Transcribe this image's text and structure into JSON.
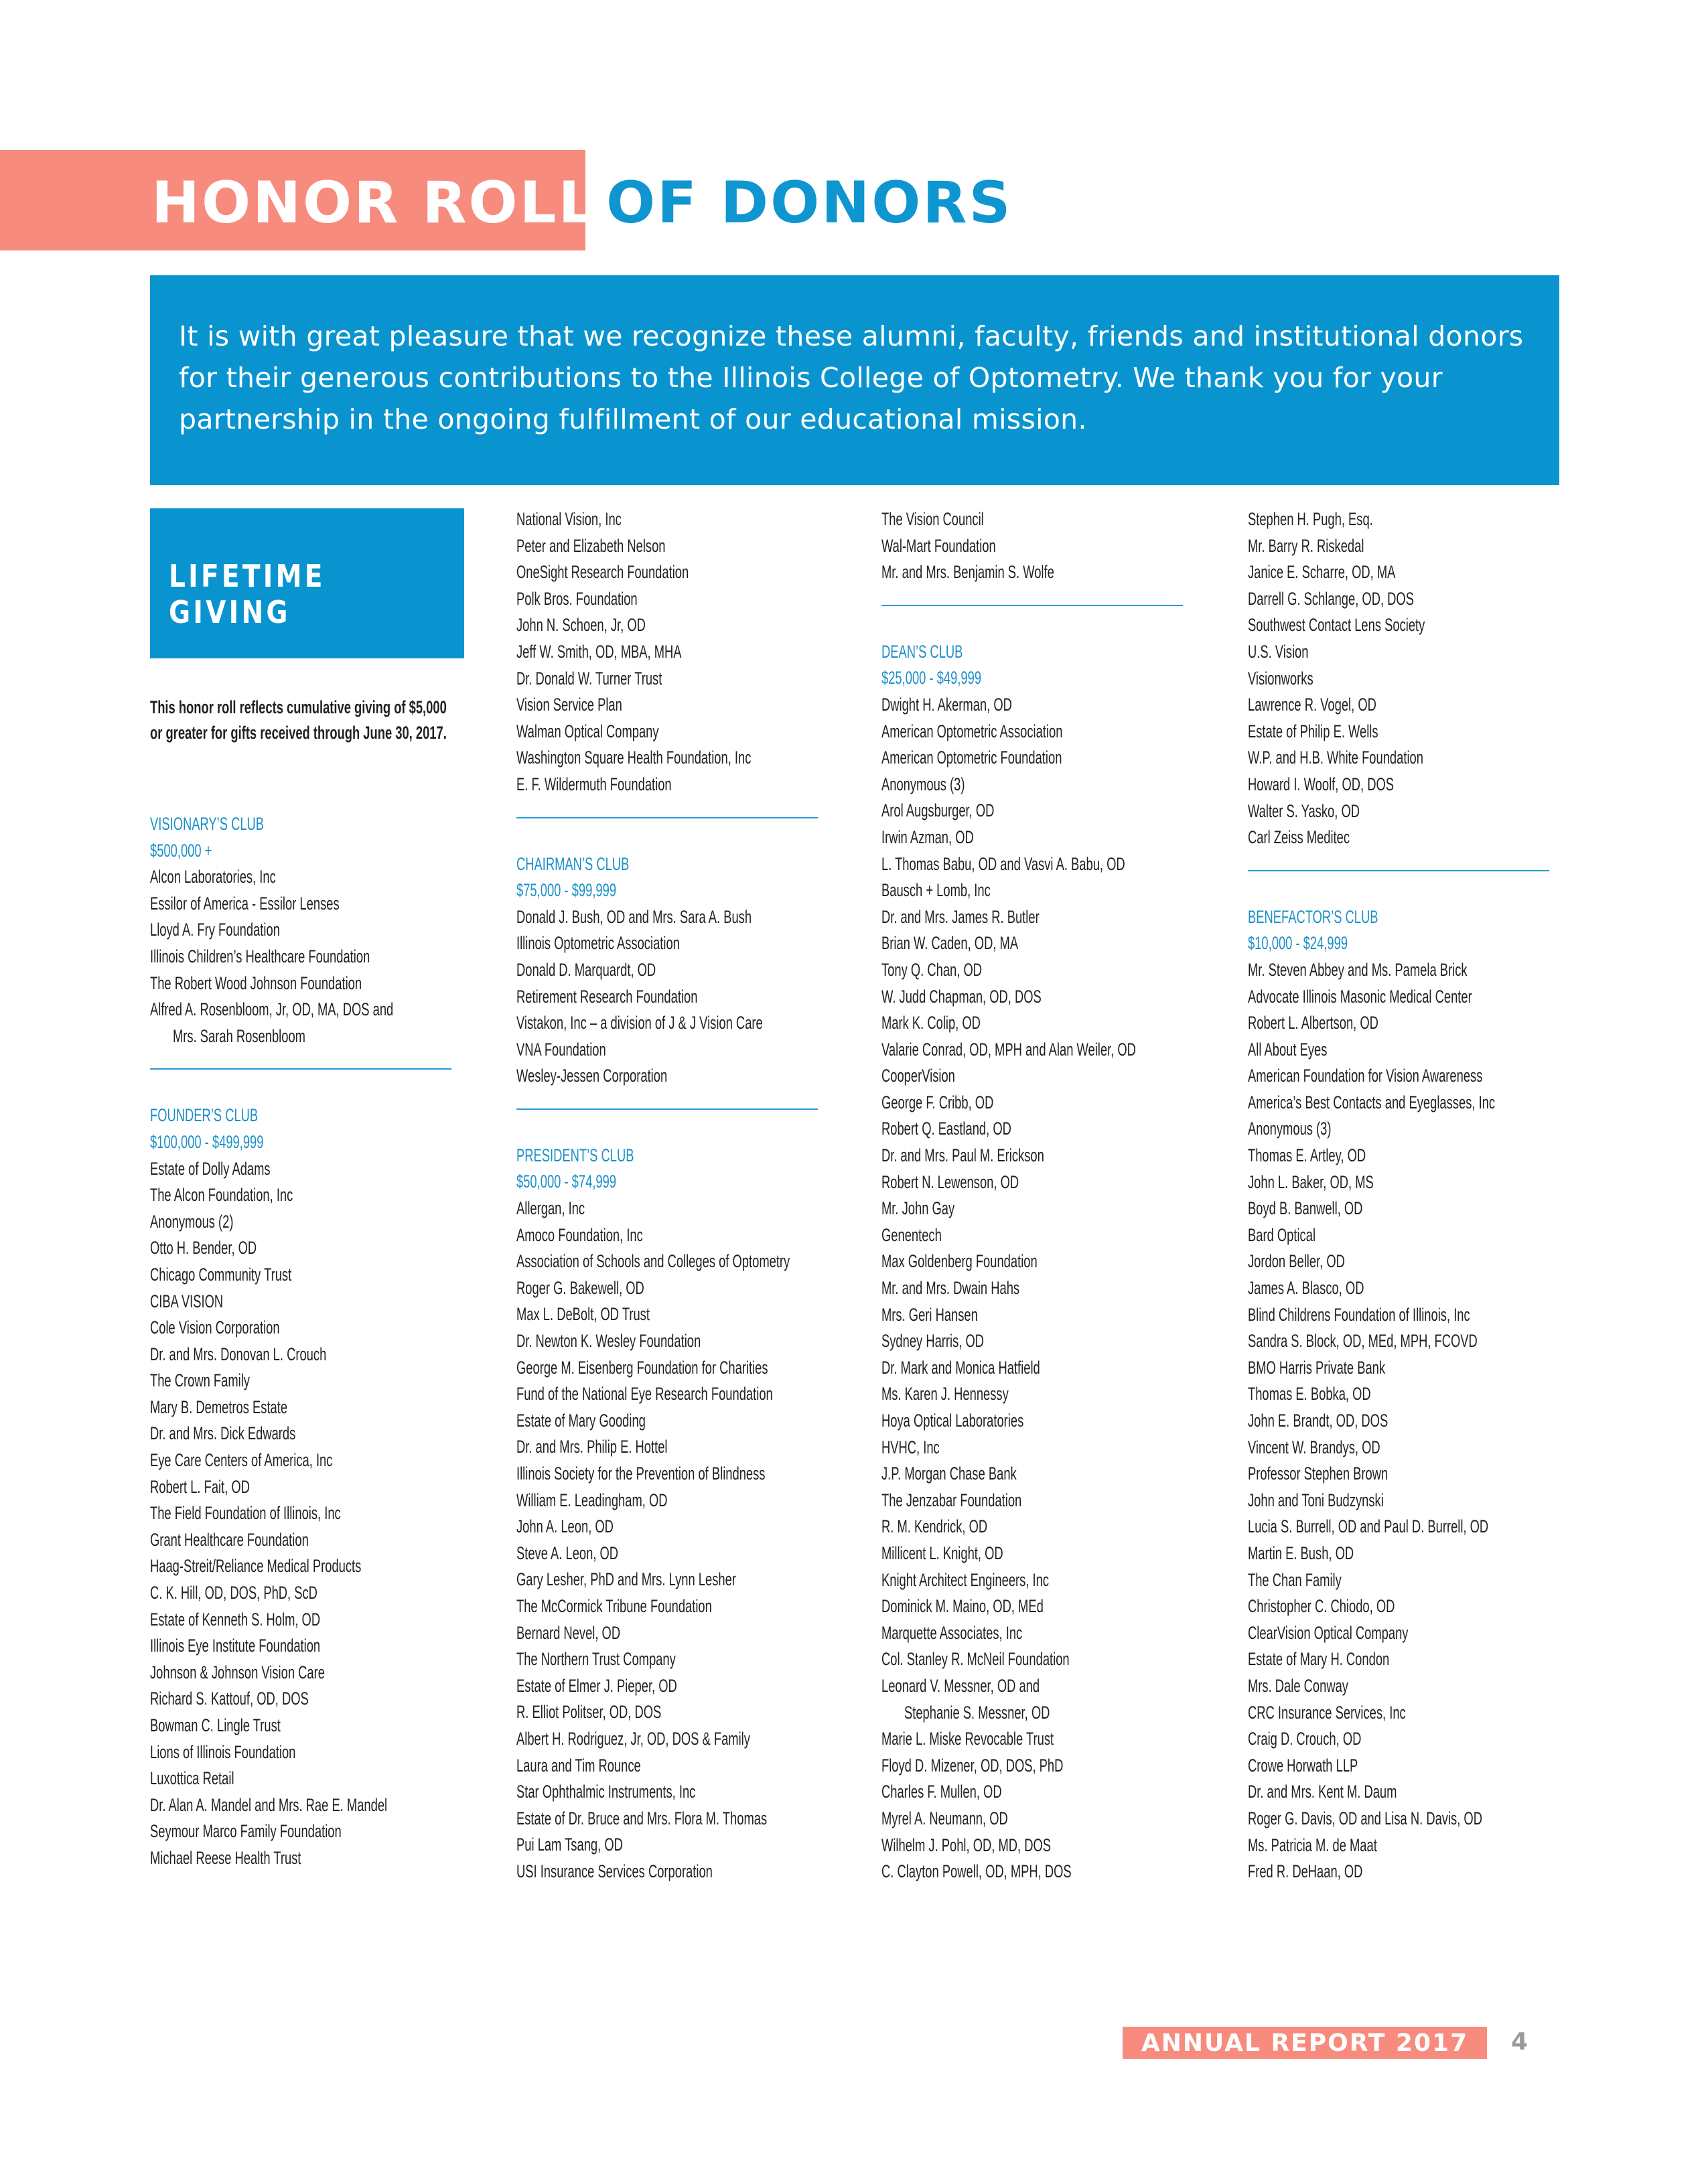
{
  "header": {
    "title_highlight": "HONOR ROLL",
    "title_rest": "OF DONORS"
  },
  "intro": {
    "text": "It is with great pleasure that we recognize these alumni, faculty, friends and institutional donors for their generous contributions to the Illinois College of Optometry. We thank you for your partnership in the ongoing fulfillment of our educational mission."
  },
  "lifetime": {
    "title_line1": "LIFETIME",
    "title_line2": "GIVING",
    "note": "This honor roll reflects cumulative giving of $5,000 or greater for gifts received through June 30, 2017."
  },
  "colors": {
    "coral": "#f78b7e",
    "blue": "#0994cf",
    "heading_blue": "#1a8fc7"
  },
  "columns": [
    {
      "sections": [
        {
          "heading": "VISIONARY’S CLUB",
          "range": "$500,000 +",
          "items": [
            "Alcon Laboratories, Inc",
            "Essilor of America - Essilor Lenses",
            "Lloyd A. Fry Foundation",
            "Illinois Children’s Healthcare Foundation",
            "The Robert Wood Johnson Foundation",
            "Alfred A. Rosenbloom, Jr, OD, MA, DOS and",
            {
              "text": "Mrs. Sarah Rosenbloom",
              "indent": true
            }
          ],
          "divider": true
        },
        {
          "heading": "FOUNDER’S CLUB",
          "range": "$100,000 - $499,999",
          "items": [
            "Estate of Dolly Adams",
            "The Alcon Foundation, Inc",
            "Anonymous (2)",
            "Otto H. Bender, OD",
            "Chicago Community Trust",
            "CIBA VISION",
            "Cole Vision Corporation",
            "Dr. and Mrs. Donovan L. Crouch",
            "The Crown Family",
            "Mary B. Demetros Estate",
            "Dr. and Mrs. Dick Edwards",
            "Eye Care Centers of America, Inc",
            "Robert L. Fait, OD",
            "The Field Foundation of Illinois, Inc",
            "Grant Healthcare Foundation",
            "Haag-Streit/Reliance Medical Products",
            "C. K. Hill, OD, DOS, PhD, ScD",
            "Estate of Kenneth S. Holm, OD",
            "Illinois Eye Institute Foundation",
            "Johnson & Johnson Vision Care",
            "Richard S. Kattouf, OD, DOS",
            "Bowman C. Lingle Trust",
            "Lions of Illinois Foundation",
            "Luxottica Retail",
            "Dr. Alan A. Mandel and Mrs. Rae E. Mandel",
            "Seymour Marco Family Foundation",
            "Michael Reese Health Trust"
          ]
        }
      ]
    },
    {
      "sections": [
        {
          "items": [
            "National Vision, Inc",
            "Peter and Elizabeth Nelson",
            "OneSight Research Foundation",
            "Polk Bros. Foundation",
            "John N. Schoen, Jr, OD",
            "Jeff W. Smith, OD, MBA, MHA",
            "Dr. Donald W. Turner Trust",
            "Vision Service Plan",
            "Walman Optical Company",
            "Washington Square Health Foundation, Inc",
            "E. F. Wildermuth Foundation"
          ],
          "divider": true
        },
        {
          "heading": "CHAIRMAN’S CLUB",
          "range": "$75,000 - $99,999",
          "items": [
            "Donald J. Bush, OD and Mrs. Sara A. Bush",
            "Illinois Optometric Association",
            "Donald D. Marquardt, OD",
            "Retirement Research Foundation",
            "Vistakon, Inc – a division of J & J Vision Care",
            "VNA Foundation",
            "Wesley-Jessen Corporation"
          ],
          "divider": true
        },
        {
          "heading": "PRESIDENT’S CLUB",
          "range": "$50,000 - $74,999",
          "items": [
            "Allergan, Inc",
            "Amoco Foundation, Inc",
            "Association of Schools and Colleges of Optometry",
            "Roger G. Bakewell, OD",
            "Max L. DeBolt, OD Trust",
            "Dr. Newton K. Wesley Foundation",
            "George M. Eisenberg Foundation for Charities",
            "Fund of the National Eye Research Foundation",
            "Estate of Mary Gooding",
            "Dr. and Mrs. Philip E. Hottel",
            "Illinois Society for the Prevention of Blindness",
            "William E. Leadingham, OD",
            "John A. Leon, OD",
            "Steve A. Leon, OD",
            "Gary Lesher, PhD and Mrs. Lynn Lesher",
            "The McCormick Tribune Foundation",
            "Bernard Nevel, OD",
            "The Northern Trust Company",
            "Estate of Elmer J. Pieper, OD",
            "R. Elliot Politser, OD, DOS",
            "Albert H. Rodriguez, Jr, OD, DOS & Family",
            "Laura and Tim Rounce",
            "Star Ophthalmic Instruments, Inc",
            "Estate of Dr. Bruce and Mrs. Flora M. Thomas",
            "Pui Lam Tsang, OD",
            "USI Insurance Services Corporation"
          ]
        }
      ]
    },
    {
      "sections": [
        {
          "items": [
            "The Vision Council",
            "Wal-Mart Foundation",
            "Mr. and Mrs. Benjamin S. Wolfe"
          ],
          "divider": true
        },
        {
          "heading": "DEAN’S CLUB",
          "range": "$25,000 - $49,999",
          "items": [
            "Dwight H. Akerman, OD",
            "American Optometric Association",
            "American Optometric Foundation",
            "Anonymous (3)",
            "Arol Augsburger, OD",
            "Irwin Azman, OD",
            "L. Thomas Babu, OD and Vasvi A. Babu, OD",
            "Bausch + Lomb, Inc",
            "Dr. and Mrs. James R. Butler",
            "Brian W. Caden, OD, MA",
            "Tony Q. Chan, OD",
            "W. Judd Chapman, OD, DOS",
            "Mark K. Colip, OD",
            "Valarie Conrad, OD, MPH and Alan Weiler, OD",
            "CooperVision",
            "George F. Cribb, OD",
            "Robert Q. Eastland, OD",
            "Dr. and Mrs. Paul M. Erickson",
            "Robert N. Lewenson, OD",
            "Mr. John Gay",
            "Genentech",
            "Max Goldenberg Foundation",
            "Mr. and Mrs. Dwain Hahs",
            "Mrs. Geri Hansen",
            "Sydney Harris, OD",
            "Dr. Mark and Monica Hatfield",
            "Ms. Karen J. Hennessy",
            "Hoya Optical Laboratories",
            "HVHC, Inc",
            "J.P. Morgan Chase Bank",
            "The Jenzabar Foundation",
            "R. M. Kendrick, OD",
            "Millicent L. Knight, OD",
            "Knight Architect Engineers, Inc",
            "Dominick M. Maino, OD, MEd",
            "Marquette Associates, Inc",
            "Col. Stanley R. McNeil Foundation",
            "Leonard V. Messner, OD and",
            {
              "text": "Stephanie S. Messner, OD",
              "indent": true
            },
            "Marie L. Miske Revocable Trust",
            "Floyd D. Mizener, OD, DOS, PhD",
            "Charles F. Mullen, OD",
            "Myrel A. Neumann, OD",
            "Wilhelm J. Pohl, OD, MD, DOS",
            "C. Clayton Powell, OD, MPH, DOS"
          ]
        }
      ]
    },
    {
      "sections": [
        {
          "items": [
            "Stephen H. Pugh, Esq.",
            "Mr. Barry R. Riskedal",
            "Janice E. Scharre, OD, MA",
            "Darrell G. Schlange, OD, DOS",
            "Southwest Contact Lens Society",
            "U.S. Vision",
            "Visionworks",
            "Lawrence R. Vogel, OD",
            "Estate of Philip E. Wells",
            "W.P. and H.B. White Foundation",
            "Howard I. Woolf, OD, DOS",
            "Walter S. Yasko, OD",
            "Carl Zeiss Meditec"
          ],
          "divider": true
        },
        {
          "heading": "BENEFACTOR’S CLUB",
          "range": "$10,000 - $24,999",
          "items": [
            "Mr. Steven Abbey and Ms. Pamela Brick",
            "Advocate Illinois Masonic Medical Center",
            "Robert L. Albertson, OD",
            "All About Eyes",
            "American Foundation for Vision Awareness",
            "America’s Best Contacts and Eyeglasses, Inc",
            "Anonymous (3)",
            "Thomas E. Artley, OD",
            "John L. Baker, OD, MS",
            "Boyd B. Banwell, OD",
            "Bard Optical",
            "Jordon Beller, OD",
            "James A. Blasco, OD",
            "Blind Childrens Foundation of Illinois, Inc",
            "Sandra S. Block, OD, MEd, MPH, FCOVD",
            "BMO Harris Private Bank",
            "Thomas E. Bobka, OD",
            "John E. Brandt, OD, DOS",
            "Vincent W. Brandys, OD",
            "Professor Stephen Brown",
            "John and Toni Budzynski",
            "Lucia S. Burrell, OD and Paul D. Burrell, OD",
            "Martin E. Bush, OD",
            "The Chan Family",
            "Christopher C. Chiodo, OD",
            "ClearVision Optical Company",
            "Estate of Mary H. Condon",
            "Mrs. Dale Conway",
            "CRC Insurance Services, Inc",
            "Craig D. Crouch, OD",
            "Crowe Horwath LLP",
            "Dr. and Mrs. Kent M. Daum",
            "Roger G. Davis, OD and Lisa N. Davis, OD",
            "Ms. Patricia M. de Maat",
            "Fred R. DeHaan, OD"
          ]
        }
      ]
    }
  ],
  "footer": {
    "label": "ANNUAL REPORT 2017",
    "page_number": "4"
  }
}
